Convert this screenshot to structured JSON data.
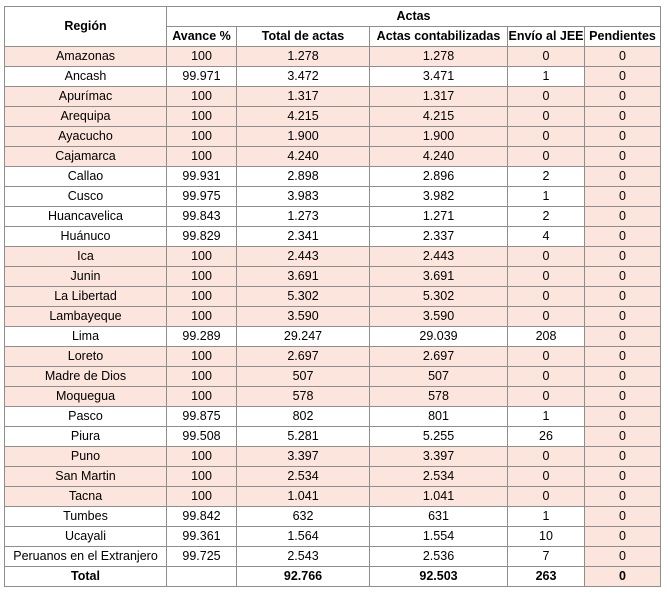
{
  "headers": {
    "region": "Región",
    "actas": "Actas",
    "avance": "Avance %",
    "total_actas": "Total de actas",
    "contabilizadas": "Actas contabilizadas",
    "envio": "Envío al JEE",
    "pendientes": "Pendientes"
  },
  "rows": [
    {
      "region": "Amazonas",
      "avance": "100",
      "total": "1.278",
      "contab": "1.278",
      "envio": "0",
      "pend": "0"
    },
    {
      "region": "Ancash",
      "avance": "99.971",
      "total": "3.472",
      "contab": "3.471",
      "envio": "1",
      "pend": "0"
    },
    {
      "region": "Apurímac",
      "avance": "100",
      "total": "1.317",
      "contab": "1.317",
      "envio": "0",
      "pend": "0"
    },
    {
      "region": "Arequipa",
      "avance": "100",
      "total": "4.215",
      "contab": "4.215",
      "envio": "0",
      "pend": "0"
    },
    {
      "region": "Ayacucho",
      "avance": "100",
      "total": "1.900",
      "contab": "1.900",
      "envio": "0",
      "pend": "0"
    },
    {
      "region": "Cajamarca",
      "avance": "100",
      "total": "4.240",
      "contab": "4.240",
      "envio": "0",
      "pend": "0"
    },
    {
      "region": "Callao",
      "avance": "99.931",
      "total": "2.898",
      "contab": "2.896",
      "envio": "2",
      "pend": "0"
    },
    {
      "region": "Cusco",
      "avance": "99.975",
      "total": "3.983",
      "contab": "3.982",
      "envio": "1",
      "pend": "0"
    },
    {
      "region": "Huancavelica",
      "avance": "99.843",
      "total": "1.273",
      "contab": "1.271",
      "envio": "2",
      "pend": "0"
    },
    {
      "region": "Huánuco",
      "avance": "99.829",
      "total": "2.341",
      "contab": "2.337",
      "envio": "4",
      "pend": "0"
    },
    {
      "region": "Ica",
      "avance": "100",
      "total": "2.443",
      "contab": "2.443",
      "envio": "0",
      "pend": "0"
    },
    {
      "region": "Junin",
      "avance": "100",
      "total": "3.691",
      "contab": "3.691",
      "envio": "0",
      "pend": "0"
    },
    {
      "region": "La Libertad",
      "avance": "100",
      "total": "5.302",
      "contab": "5.302",
      "envio": "0",
      "pend": "0"
    },
    {
      "region": "Lambayeque",
      "avance": "100",
      "total": "3.590",
      "contab": "3.590",
      "envio": "0",
      "pend": "0"
    },
    {
      "region": "Lima",
      "avance": "99.289",
      "total": "29.247",
      "contab": "29.039",
      "envio": "208",
      "pend": "0"
    },
    {
      "region": "Loreto",
      "avance": "100",
      "total": "2.697",
      "contab": "2.697",
      "envio": "0",
      "pend": "0"
    },
    {
      "region": "Madre de Dios",
      "avance": "100",
      "total": "507",
      "contab": "507",
      "envio": "0",
      "pend": "0"
    },
    {
      "region": "Moquegua",
      "avance": "100",
      "total": "578",
      "contab": "578",
      "envio": "0",
      "pend": "0"
    },
    {
      "region": "Pasco",
      "avance": "99.875",
      "total": "802",
      "contab": "801",
      "envio": "1",
      "pend": "0"
    },
    {
      "region": "Piura",
      "avance": "99.508",
      "total": "5.281",
      "contab": "5.255",
      "envio": "26",
      "pend": "0"
    },
    {
      "region": "Puno",
      "avance": "100",
      "total": "3.397",
      "contab": "3.397",
      "envio": "0",
      "pend": "0"
    },
    {
      "region": "San Martin",
      "avance": "100",
      "total": "2.534",
      "contab": "2.534",
      "envio": "0",
      "pend": "0"
    },
    {
      "region": "Tacna",
      "avance": "100",
      "total": "1.041",
      "contab": "1.041",
      "envio": "0",
      "pend": "0"
    },
    {
      "region": "Tumbes",
      "avance": "99.842",
      "total": "632",
      "contab": "631",
      "envio": "1",
      "pend": "0"
    },
    {
      "region": "Ucayali",
      "avance": "99.361",
      "total": "1.564",
      "contab": "1.554",
      "envio": "10",
      "pend": "0"
    },
    {
      "region": "Peruanos en el Extranjero",
      "avance": "99.725",
      "total": "2.543",
      "contab": "2.536",
      "envio": "7",
      "pend": "0"
    }
  ],
  "total": {
    "label": "Total",
    "total": "92.766",
    "contab": "92.503",
    "envio": "263",
    "pend": "0"
  },
  "colors": {
    "highlight": "#fce5dc",
    "border": "#8e8e8e"
  }
}
